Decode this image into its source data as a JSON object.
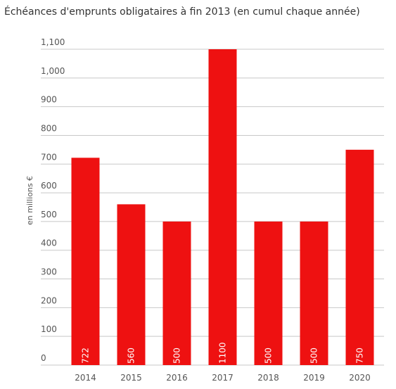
{
  "chart_data": {
    "type": "bar",
    "title": "Échéances d'emprunts obligataires à fin 2013 (en cumul chaque année)",
    "ylabel": "en millions €",
    "xlabel": "",
    "categories": [
      "2014",
      "2015",
      "2016",
      "2017",
      "2018",
      "2019",
      "2020"
    ],
    "values": [
      722,
      560,
      500,
      1100,
      500,
      500,
      750
    ],
    "data_labels": [
      "722",
      "560",
      "500",
      "1100",
      "500",
      "500",
      "750"
    ],
    "yticks": [
      0,
      100,
      200,
      300,
      400,
      500,
      600,
      700,
      800,
      900,
      1000,
      1100
    ],
    "ytick_labels": [
      "0",
      "100",
      "200",
      "300",
      "400",
      "500",
      "600",
      "700",
      "800",
      "900",
      "1,000",
      "1,100"
    ],
    "ylim": [
      0,
      1100
    ],
    "grid": true,
    "legend": "none",
    "colors": {
      "bar": "#ee1111",
      "grid": "#c8c8c8",
      "text": "#555555",
      "bar_label": "#ffffff"
    }
  }
}
